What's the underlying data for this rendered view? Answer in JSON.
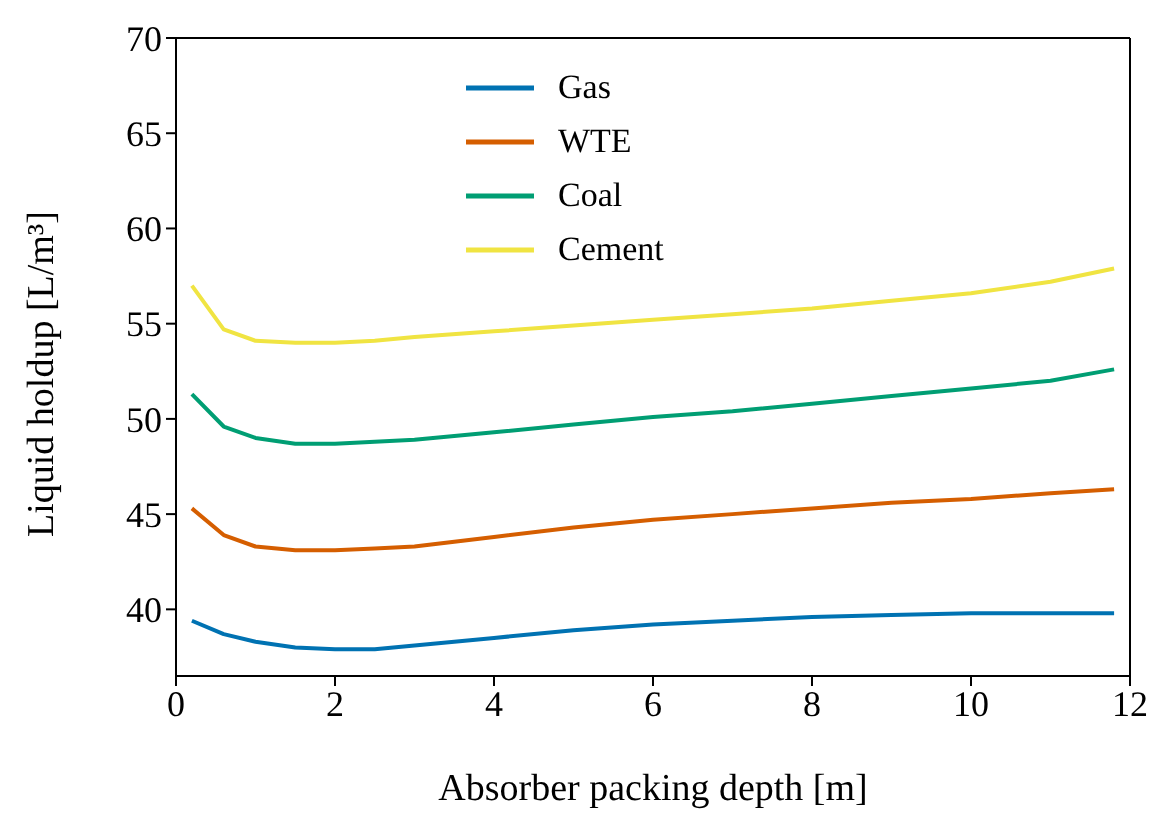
{
  "chart_data": {
    "type": "line",
    "xlabel": "Absorber packing depth [m]",
    "ylabel": "Liquid holdup [L/m³]",
    "x": [
      0.2,
      0.6,
      1,
      1.5,
      2,
      2.5,
      3,
      4,
      5,
      6,
      7,
      8,
      9,
      10,
      11,
      11.8
    ],
    "series": [
      {
        "name": "Gas",
        "color": "#0072b2",
        "values": [
          39.4,
          38.7,
          38.3,
          38.0,
          37.9,
          37.9,
          38.1,
          38.5,
          38.9,
          39.2,
          39.4,
          39.6,
          39.7,
          39.8,
          39.8,
          39.8
        ]
      },
      {
        "name": "WTE",
        "color": "#d55e00",
        "values": [
          45.3,
          43.9,
          43.3,
          43.1,
          43.1,
          43.2,
          43.3,
          43.8,
          44.3,
          44.7,
          45.0,
          45.3,
          45.6,
          45.8,
          46.1,
          46.3
        ]
      },
      {
        "name": "Coal",
        "color": "#009e73",
        "values": [
          51.3,
          49.6,
          49.0,
          48.7,
          48.7,
          48.8,
          48.9,
          49.3,
          49.7,
          50.1,
          50.4,
          50.8,
          51.2,
          51.6,
          52.0,
          52.6
        ]
      },
      {
        "name": "Cement",
        "color": "#f0e442",
        "values": [
          57.0,
          54.7,
          54.1,
          54.0,
          54.0,
          54.1,
          54.3,
          54.6,
          54.9,
          55.2,
          55.5,
          55.8,
          56.2,
          56.6,
          57.2,
          57.9
        ]
      }
    ],
    "xlim": [
      0,
      12
    ],
    "xticks": [
      0,
      2,
      4,
      6,
      8,
      10,
      12
    ],
    "ylim": [
      36.5,
      70
    ],
    "yticks": [
      40,
      45,
      50,
      55,
      60,
      65,
      70
    ],
    "legend": "top",
    "grid": false,
    "marker": "none",
    "line_style": "solid"
  }
}
